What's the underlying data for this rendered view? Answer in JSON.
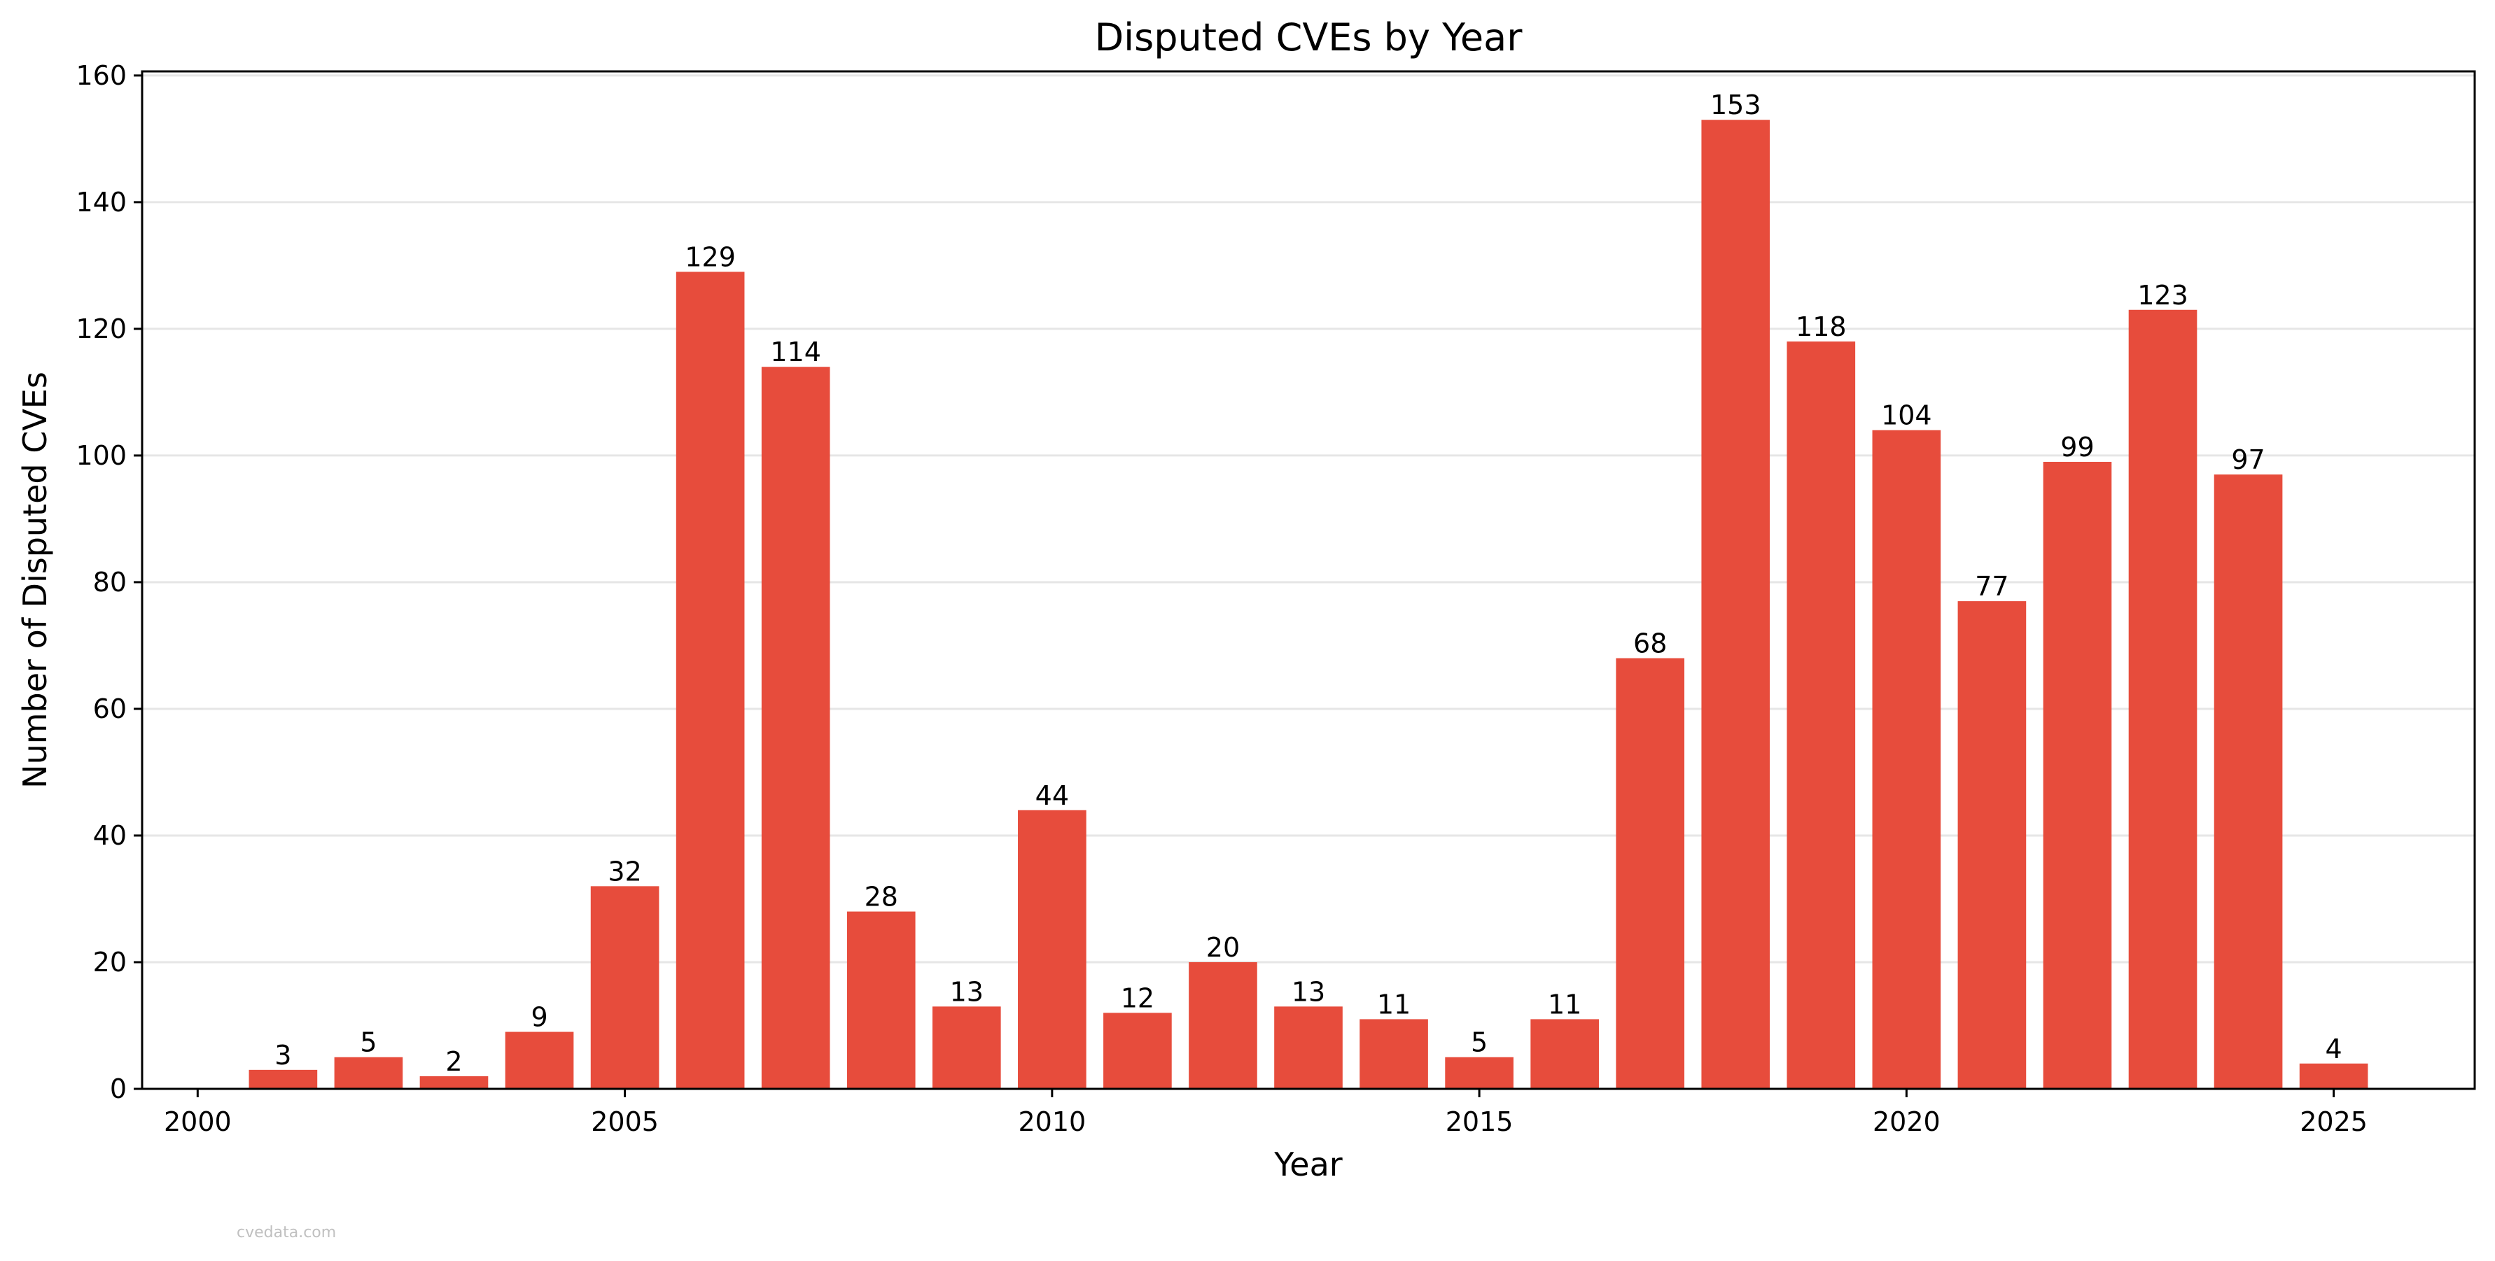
{
  "chart_data": {
    "type": "bar",
    "title": "Disputed CVEs by Year",
    "xlabel": "Year",
    "ylabel": "Number of Disputed CVEs",
    "x": [
      2001,
      2002,
      2003,
      2004,
      2005,
      2006,
      2007,
      2008,
      2009,
      2010,
      2011,
      2012,
      2013,
      2014,
      2015,
      2016,
      2017,
      2018,
      2019,
      2020,
      2021,
      2022,
      2023,
      2024,
      2025
    ],
    "values": [
      3,
      5,
      2,
      9,
      32,
      129,
      114,
      28,
      13,
      44,
      12,
      20,
      13,
      11,
      5,
      11,
      68,
      153,
      118,
      104,
      77,
      99,
      123,
      97,
      4
    ],
    "xlim": [
      1999.35,
      2026.65
    ],
    "ylim": [
      0,
      160.65
    ],
    "xticks": [
      2000,
      2005,
      2010,
      2015,
      2020,
      2025
    ],
    "yticks": [
      0,
      20,
      40,
      60,
      80,
      100,
      120,
      140,
      160
    ],
    "grid": "horizontal",
    "bar_color": "#e74c3c",
    "grid_color": "#e6e6e6"
  },
  "watermark": "cvedata.com"
}
